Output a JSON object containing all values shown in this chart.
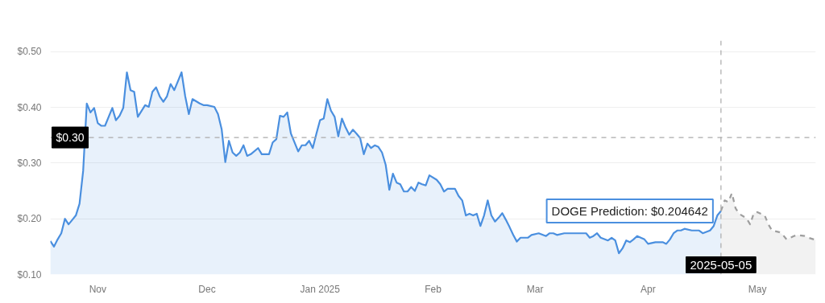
{
  "chart_data": {
    "type": "area",
    "xlim": [
      "2024-10-19",
      "2025-05-17"
    ],
    "ylim": [
      0.1,
      0.52
    ],
    "yticks": [
      {
        "value": 0.1,
        "label": "$0.10"
      },
      {
        "value": 0.2,
        "label": "$0.20"
      },
      {
        "value": 0.3,
        "label": "$0.30"
      },
      {
        "value": 0.4,
        "label": "$0.40"
      },
      {
        "value": 0.5,
        "label": "$0.50"
      }
    ],
    "xticks": [
      {
        "value": "2024-11-01",
        "label": "Nov"
      },
      {
        "value": "2024-12-01",
        "label": "Dec"
      },
      {
        "value": "2025-01-01",
        "label": "Jan 2025"
      },
      {
        "value": "2025-02-01",
        "label": "Feb"
      },
      {
        "value": "2025-03-01",
        "label": "Mar"
      },
      {
        "value": "2025-04-01",
        "label": "Apr"
      },
      {
        "value": "2025-05-01",
        "label": "May"
      }
    ],
    "grid": "y",
    "line_style": "solid",
    "series": [
      {
        "color": "#4a8fdf",
        "x": [
          "2024-10-19",
          "2024-10-20",
          "2024-10-21",
          "2024-10-22",
          "2024-10-23",
          "2024-10-24",
          "2024-10-25",
          "2024-10-26",
          "2024-10-27",
          "2024-10-28",
          "2024-10-29",
          "2024-10-30",
          "2024-10-31",
          "2024-11-01",
          "2024-11-02",
          "2024-11-03",
          "2024-11-04",
          "2024-11-05",
          "2024-11-06",
          "2024-11-07",
          "2024-11-08",
          "2024-11-09",
          "2024-11-10",
          "2024-11-11",
          "2024-11-12",
          "2024-11-14",
          "2024-11-15",
          "2024-11-16",
          "2024-11-17",
          "2024-11-18",
          "2024-11-19",
          "2024-11-20",
          "2024-11-21",
          "2024-11-22",
          "2024-11-23",
          "2024-11-24",
          "2024-11-25",
          "2024-11-26",
          "2024-11-27",
          "2024-11-29",
          "2024-11-30",
          "2024-12-01",
          "2024-12-03",
          "2024-12-04",
          "2024-12-05",
          "2024-12-06",
          "2024-12-07",
          "2024-12-08",
          "2024-12-09",
          "2024-12-10",
          "2024-12-11",
          "2024-12-12",
          "2024-12-13",
          "2024-12-15",
          "2024-12-16",
          "2024-12-18",
          "2024-12-19",
          "2024-12-20",
          "2024-12-21",
          "2024-12-22",
          "2024-12-23",
          "2024-12-24",
          "2024-12-26",
          "2024-12-27",
          "2024-12-28",
          "2024-12-29",
          "2024-12-30",
          "2024-12-31",
          "2025-01-01",
          "2025-01-02",
          "2025-01-03",
          "2025-01-04",
          "2025-01-05",
          "2025-01-06",
          "2025-01-07",
          "2025-01-08",
          "2025-01-09",
          "2025-01-10",
          "2025-01-11",
          "2025-01-12",
          "2025-01-13",
          "2025-01-14",
          "2025-01-15",
          "2025-01-16",
          "2025-01-17",
          "2025-01-18",
          "2025-01-19",
          "2025-01-20",
          "2025-01-21",
          "2025-01-22",
          "2025-01-23",
          "2025-01-24",
          "2025-01-25",
          "2025-01-26",
          "2025-01-27",
          "2025-01-28",
          "2025-01-29",
          "2025-01-30",
          "2025-01-31",
          "2025-02-02",
          "2025-02-03",
          "2025-02-04",
          "2025-02-05",
          "2025-02-07",
          "2025-02-08",
          "2025-02-09",
          "2025-02-10",
          "2025-02-11",
          "2025-02-12",
          "2025-02-13",
          "2025-02-14",
          "2025-02-15",
          "2025-02-16",
          "2025-02-17",
          "2025-02-18",
          "2025-02-19",
          "2025-02-20",
          "2025-02-21",
          "2025-02-22",
          "2025-02-23",
          "2025-02-24",
          "2025-02-25",
          "2025-02-27",
          "2025-02-28",
          "2025-03-02",
          "2025-03-04",
          "2025-03-05",
          "2025-03-06",
          "2025-03-07",
          "2025-03-09",
          "2025-03-15",
          "2025-03-16",
          "2025-03-17",
          "2025-03-18",
          "2025-03-19",
          "2025-03-21",
          "2025-03-22",
          "2025-03-23",
          "2025-03-24",
          "2025-03-25",
          "2025-03-26",
          "2025-03-27",
          "2025-03-28",
          "2025-03-29",
          "2025-03-31",
          "2025-04-01",
          "2025-04-03",
          "2025-04-05",
          "2025-04-06",
          "2025-04-07",
          "2025-04-08",
          "2025-04-09",
          "2025-04-10",
          "2025-04-11",
          "2025-04-13",
          "2025-04-15",
          "2025-04-16",
          "2025-04-18",
          "2025-04-19",
          "2025-04-20",
          "2025-04-21"
        ],
        "values": [
          0.16,
          0.15,
          0.163,
          0.174,
          0.2,
          0.19,
          0.198,
          0.206,
          0.227,
          0.286,
          0.407,
          0.391,
          0.399,
          0.372,
          0.367,
          0.367,
          0.383,
          0.399,
          0.377,
          0.385,
          0.399,
          0.463,
          0.431,
          0.428,
          0.383,
          0.404,
          0.401,
          0.428,
          0.436,
          0.42,
          0.41,
          0.42,
          0.442,
          0.431,
          0.447,
          0.463,
          0.42,
          0.388,
          0.415,
          0.407,
          0.404,
          0.404,
          0.401,
          0.388,
          0.361,
          0.302,
          0.34,
          0.319,
          0.313,
          0.319,
          0.332,
          0.313,
          0.316,
          0.327,
          0.316,
          0.316,
          0.337,
          0.343,
          0.385,
          0.383,
          0.391,
          0.353,
          0.321,
          0.332,
          0.332,
          0.34,
          0.327,
          0.353,
          0.377,
          0.38,
          0.415,
          0.394,
          0.383,
          0.348,
          0.38,
          0.364,
          0.351,
          0.36,
          0.353,
          0.345,
          0.316,
          0.335,
          0.327,
          0.332,
          0.329,
          0.319,
          0.297,
          0.252,
          0.281,
          0.265,
          0.262,
          0.249,
          0.249,
          0.257,
          0.25,
          0.265,
          0.262,
          0.26,
          0.278,
          0.27,
          0.262,
          0.249,
          0.254,
          0.254,
          0.241,
          0.233,
          0.206,
          0.209,
          0.206,
          0.209,
          0.187,
          0.206,
          0.233,
          0.206,
          0.195,
          0.202,
          0.21,
          0.198,
          0.185,
          0.171,
          0.159,
          0.166,
          0.166,
          0.171,
          0.174,
          0.169,
          0.174,
          0.174,
          0.171,
          0.174,
          0.174,
          0.166,
          0.169,
          0.174,
          0.166,
          0.161,
          0.166,
          0.161,
          0.138,
          0.147,
          0.161,
          0.158,
          0.163,
          0.169,
          0.163,
          0.155,
          0.158,
          0.158,
          0.155,
          0.163,
          0.174,
          0.179,
          0.179,
          0.182,
          0.179,
          0.179,
          0.174,
          0.179,
          0.187,
          0.206,
          0.214
        ]
      },
      {
        "color": "#9e9e9e",
        "line_style": "dashed",
        "x": [
          "2025-04-21",
          "2025-04-22",
          "2025-04-23",
          "2025-04-24",
          "2025-04-25",
          "2025-04-26",
          "2025-04-28",
          "2025-04-29",
          "2025-04-30",
          "2025-05-01",
          "2025-05-03",
          "2025-05-04",
          "2025-05-05",
          "2025-05-07",
          "2025-05-08",
          "2025-05-09",
          "2025-05-11",
          "2025-05-12",
          "2025-05-14",
          "2025-05-15",
          "2025-05-17"
        ],
        "values": [
          0.214,
          0.233,
          0.23,
          0.246,
          0.219,
          0.209,
          0.201,
          0.19,
          0.21,
          0.212,
          0.206,
          0.19,
          0.179,
          0.176,
          0.171,
          0.163,
          0.169,
          0.171,
          0.169,
          0.166,
          0.162
        ]
      }
    ],
    "ref_lines": [
      {
        "axis": "y",
        "value": 0.346,
        "color": "#aaaaaa",
        "line_style": "dashed"
      },
      {
        "axis": "x",
        "value": "2025-04-21",
        "label": "2025-05-05",
        "color": "#aaaaaa",
        "line_style": "dashed"
      }
    ],
    "annotations": [
      {
        "text": "$0.30",
        "x": "2024-10-19",
        "y": 0.346
      },
      {
        "text": "DOGE Prediction: $0.204642",
        "x": "2025-04-21",
        "y": 0.214
      }
    ]
  }
}
